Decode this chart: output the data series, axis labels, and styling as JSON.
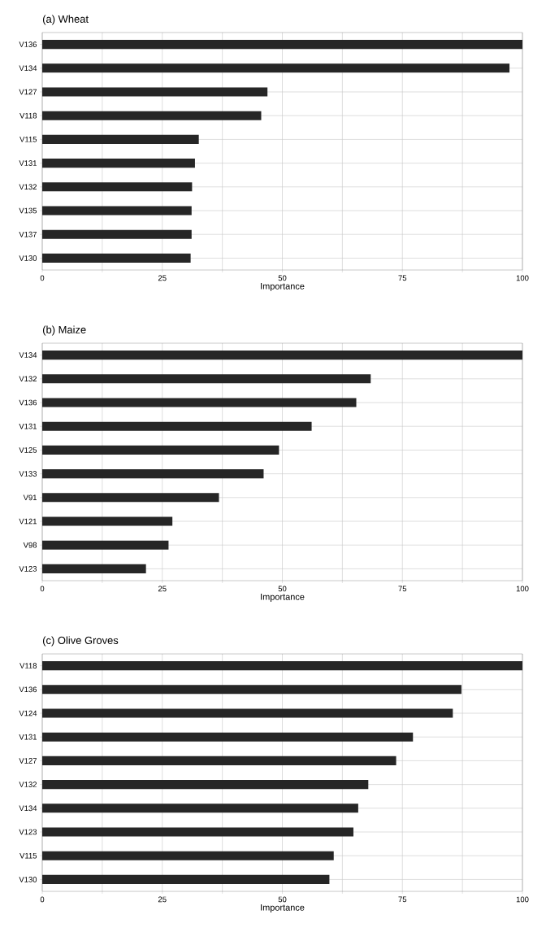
{
  "chart_data": [
    {
      "type": "bar",
      "orientation": "horizontal",
      "title": "(a) Wheat",
      "xlabel": "Importance",
      "categories": [
        "V136",
        "V134",
        "V127",
        "V118",
        "V115",
        "V131",
        "V132",
        "V135",
        "V137",
        "V130"
      ],
      "values": [
        100,
        97.3,
        46.9,
        45.6,
        32.6,
        31.8,
        31.2,
        31.1,
        31.1,
        30.9
      ],
      "color": "#262626",
      "xlim": [
        0,
        100
      ],
      "xticks": [
        0,
        {
          "value": 12.5,
          "label": null
        },
        25,
        {
          "value": 37.5,
          "label": null
        },
        50,
        {
          "value": 62.5,
          "label": null
        },
        75,
        {
          "value": 87.5,
          "label": null
        },
        100
      ],
      "grid": true
    },
    {
      "type": "bar",
      "orientation": "horizontal",
      "title": "(b) Maize",
      "xlabel": "Importance",
      "categories": [
        "V134",
        "V132",
        "V136",
        "V131",
        "V125",
        "V133",
        "V91",
        "V121",
        "V98",
        "V123"
      ],
      "values": [
        100,
        68.4,
        65.4,
        56.1,
        49.3,
        46.1,
        36.8,
        27.1,
        26.3,
        21.6
      ],
      "color": "#262626",
      "xlim": [
        0,
        100
      ],
      "xticks": [
        0,
        {
          "value": 12.5,
          "label": null
        },
        25,
        {
          "value": 37.5,
          "label": null
        },
        50,
        {
          "value": 62.5,
          "label": null
        },
        75,
        {
          "value": 87.5,
          "label": null
        },
        100
      ],
      "grid": true
    },
    {
      "type": "bar",
      "orientation": "horizontal",
      "title": "(c) Olive Groves",
      "xlabel": "Importance",
      "categories": [
        "V118",
        "V136",
        "V124",
        "V131",
        "V127",
        "V132",
        "V134",
        "V123",
        "V115",
        "V130"
      ],
      "values": [
        100,
        87.3,
        85.5,
        77.2,
        73.7,
        67.9,
        65.8,
        64.8,
        60.7,
        59.8
      ],
      "color": "#262626",
      "xlim": [
        0,
        100
      ],
      "xticks": [
        0,
        {
          "value": 12.5,
          "label": null
        },
        25,
        {
          "value": 37.5,
          "label": null
        },
        50,
        {
          "value": 62.5,
          "label": null
        },
        75,
        {
          "value": 87.5,
          "label": null
        },
        100
      ],
      "grid": true
    }
  ]
}
